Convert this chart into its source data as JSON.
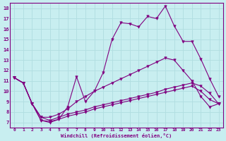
{
  "xlabel": "Windchill (Refroidissement éolien,°C)",
  "background_color": "#c8eef0",
  "line_color": "#800080",
  "grid_color": "#b0dde0",
  "x_ticks": [
    0,
    1,
    2,
    3,
    4,
    5,
    6,
    7,
    8,
    9,
    10,
    11,
    12,
    13,
    14,
    15,
    16,
    17,
    18,
    19,
    20,
    21,
    22,
    23
  ],
  "y_ticks": [
    7,
    8,
    9,
    10,
    11,
    12,
    13,
    14,
    15,
    16,
    17,
    18
  ],
  "xlim": [
    -0.5,
    23.5
  ],
  "ylim": [
    6.5,
    18.5
  ],
  "line1_x": [
    0,
    1,
    2,
    3,
    4,
    5,
    6,
    7,
    8,
    9,
    10,
    11,
    12,
    13,
    14,
    15,
    16,
    17,
    18,
    19,
    20,
    21,
    22,
    23
  ],
  "line1_y": [
    11.3,
    10.8,
    8.8,
    7.2,
    7.1,
    7.3,
    8.5,
    11.4,
    9.0,
    10.0,
    11.8,
    15.0,
    16.6,
    16.5,
    16.2,
    17.2,
    17.0,
    18.2,
    16.3,
    14.8,
    14.8,
    13.1,
    11.2,
    9.5
  ],
  "line2_x": [
    0,
    1,
    2,
    3,
    4,
    5,
    6,
    7,
    8,
    9,
    10,
    11,
    12,
    13,
    14,
    15,
    16,
    17,
    18,
    19,
    20,
    21,
    22,
    23
  ],
  "line2_y": [
    11.3,
    10.8,
    8.8,
    7.5,
    7.5,
    7.8,
    8.3,
    9.0,
    9.5,
    10.0,
    10.4,
    10.8,
    11.2,
    11.6,
    12.0,
    12.4,
    12.8,
    13.2,
    13.0,
    12.0,
    11.0,
    9.5,
    8.5,
    8.8
  ],
  "line3_x": [
    0,
    1,
    2,
    3,
    4,
    5,
    6,
    7,
    8,
    9,
    10,
    11,
    12,
    13,
    14,
    15,
    16,
    17,
    18,
    19,
    20,
    21,
    22,
    23
  ],
  "line3_y": [
    11.3,
    10.8,
    8.8,
    7.5,
    7.2,
    7.5,
    7.8,
    8.0,
    8.2,
    8.5,
    8.7,
    8.9,
    9.1,
    9.3,
    9.5,
    9.7,
    9.9,
    10.2,
    10.4,
    10.6,
    10.8,
    10.5,
    9.8,
    8.8
  ],
  "line4_x": [
    0,
    1,
    2,
    3,
    4,
    5,
    6,
    7,
    8,
    9,
    10,
    11,
    12,
    13,
    14,
    15,
    16,
    17,
    18,
    19,
    20,
    21,
    22,
    23
  ],
  "line4_y": [
    11.3,
    10.8,
    8.8,
    7.2,
    7.0,
    7.3,
    7.6,
    7.8,
    8.0,
    8.3,
    8.5,
    8.7,
    8.9,
    9.1,
    9.3,
    9.5,
    9.7,
    9.9,
    10.1,
    10.3,
    10.5,
    10.0,
    9.2,
    8.8
  ],
  "marker": "^",
  "markersize": 3,
  "linewidth": 0.8
}
